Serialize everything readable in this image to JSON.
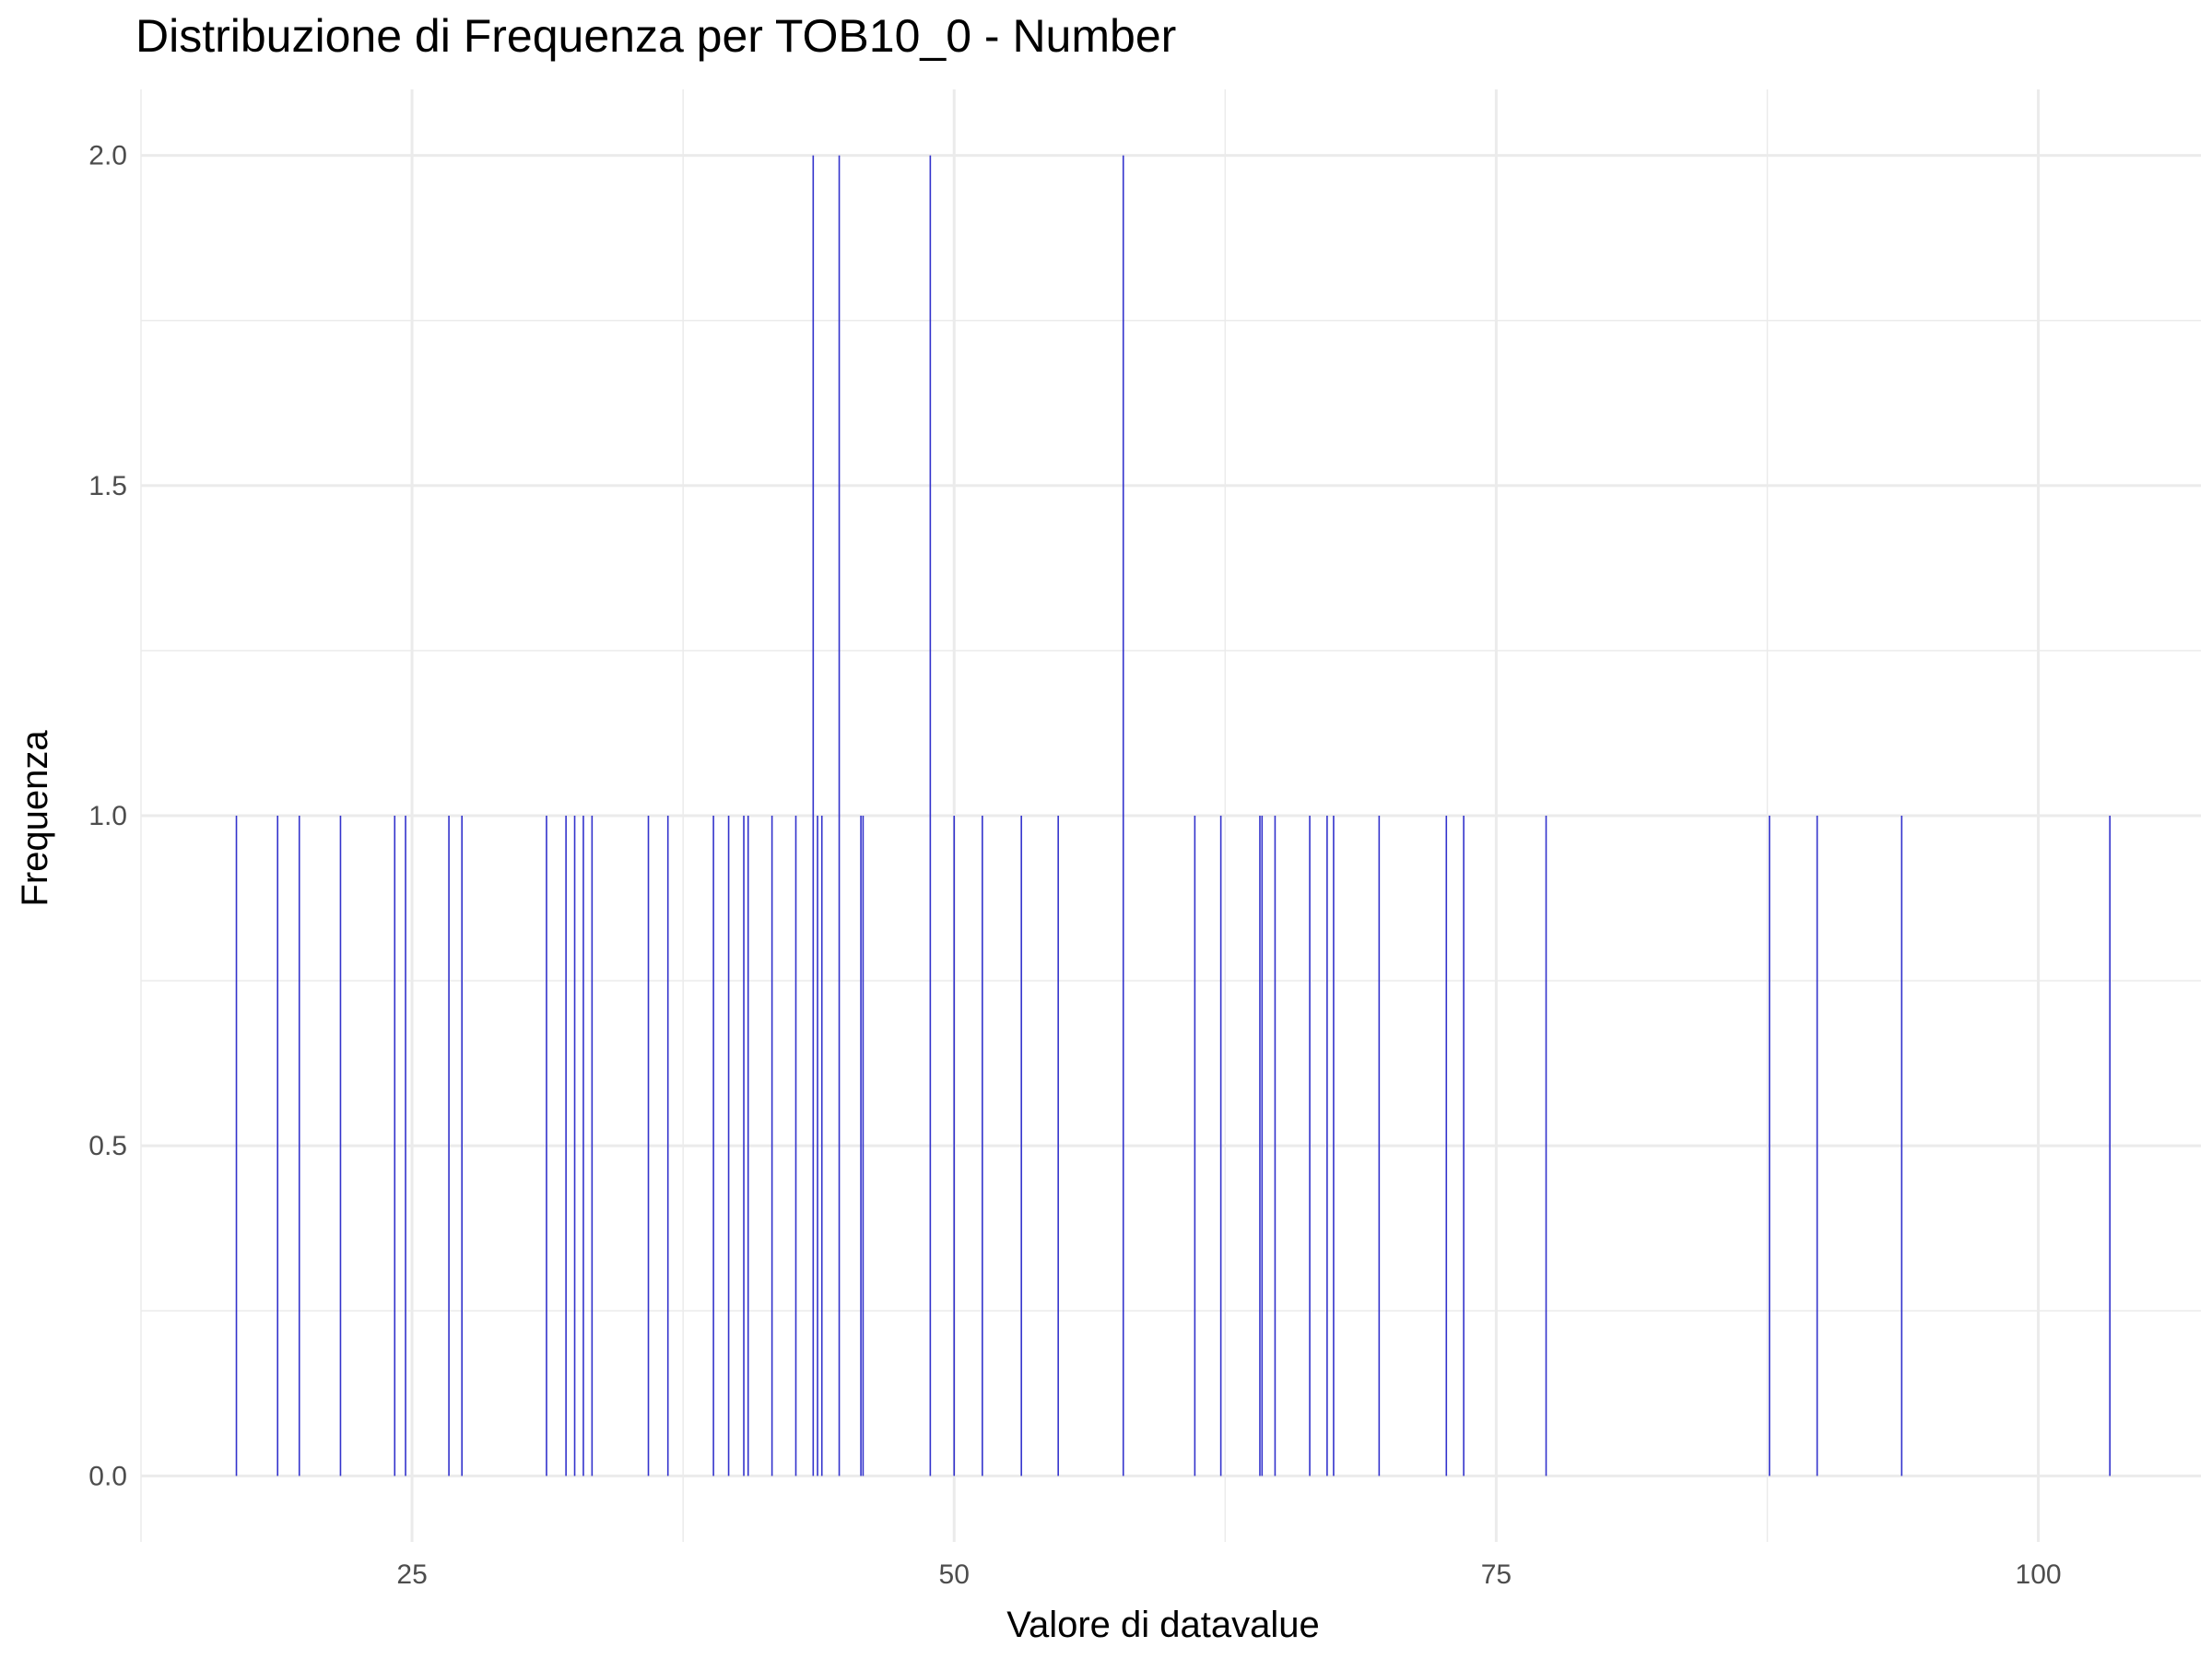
{
  "chart_data": {
    "type": "bar",
    "title": "Distribuzione di Frequenza per TOB10_0 - Number",
    "xlabel": "Valore di datavalue",
    "ylabel": "Frequenza",
    "xlim": [
      12.5,
      107.5
    ],
    "ylim": [
      -0.1,
      2.1
    ],
    "x_ticks": [
      25,
      50,
      75,
      100
    ],
    "x_tick_labels": [
      "25",
      "50",
      "75",
      "100"
    ],
    "y_ticks": [
      0.0,
      0.5,
      1.0,
      1.5,
      2.0
    ],
    "y_tick_labels": [
      "0.0",
      "0.5",
      "1.0",
      "1.5",
      "2.0"
    ],
    "grid": true,
    "bar_color": "#3333cc",
    "bars": [
      {
        "x": 16.9,
        "y": 1
      },
      {
        "x": 18.8,
        "y": 1
      },
      {
        "x": 19.8,
        "y": 1
      },
      {
        "x": 21.7,
        "y": 1
      },
      {
        "x": 24.2,
        "y": 1
      },
      {
        "x": 24.7,
        "y": 1
      },
      {
        "x": 26.7,
        "y": 1
      },
      {
        "x": 27.3,
        "y": 1
      },
      {
        "x": 31.2,
        "y": 1
      },
      {
        "x": 32.1,
        "y": 1
      },
      {
        "x": 32.5,
        "y": 1
      },
      {
        "x": 32.9,
        "y": 1
      },
      {
        "x": 33.3,
        "y": 1
      },
      {
        "x": 35.9,
        "y": 1
      },
      {
        "x": 36.8,
        "y": 1
      },
      {
        "x": 38.9,
        "y": 1
      },
      {
        "x": 39.6,
        "y": 1
      },
      {
        "x": 40.3,
        "y": 1
      },
      {
        "x": 40.5,
        "y": 1
      },
      {
        "x": 41.6,
        "y": 1
      },
      {
        "x": 42.7,
        "y": 1
      },
      {
        "x": 43.5,
        "y": 2
      },
      {
        "x": 43.7,
        "y": 1
      },
      {
        "x": 43.9,
        "y": 1
      },
      {
        "x": 44.7,
        "y": 2
      },
      {
        "x": 45.7,
        "y": 1
      },
      {
        "x": 45.8,
        "y": 1
      },
      {
        "x": 48.9,
        "y": 2
      },
      {
        "x": 50.0,
        "y": 1
      },
      {
        "x": 51.3,
        "y": 1
      },
      {
        "x": 53.1,
        "y": 1
      },
      {
        "x": 54.8,
        "y": 1
      },
      {
        "x": 57.8,
        "y": 2
      },
      {
        "x": 61.1,
        "y": 1
      },
      {
        "x": 62.3,
        "y": 1
      },
      {
        "x": 64.1,
        "y": 1
      },
      {
        "x": 64.2,
        "y": 1
      },
      {
        "x": 64.8,
        "y": 1
      },
      {
        "x": 66.4,
        "y": 1
      },
      {
        "x": 67.2,
        "y": 1
      },
      {
        "x": 67.5,
        "y": 1
      },
      {
        "x": 69.6,
        "y": 1
      },
      {
        "x": 72.7,
        "y": 1
      },
      {
        "x": 73.5,
        "y": 1
      },
      {
        "x": 77.3,
        "y": 1
      },
      {
        "x": 87.6,
        "y": 1
      },
      {
        "x": 89.8,
        "y": 1
      },
      {
        "x": 93.7,
        "y": 1
      },
      {
        "x": 103.3,
        "y": 1
      }
    ]
  }
}
